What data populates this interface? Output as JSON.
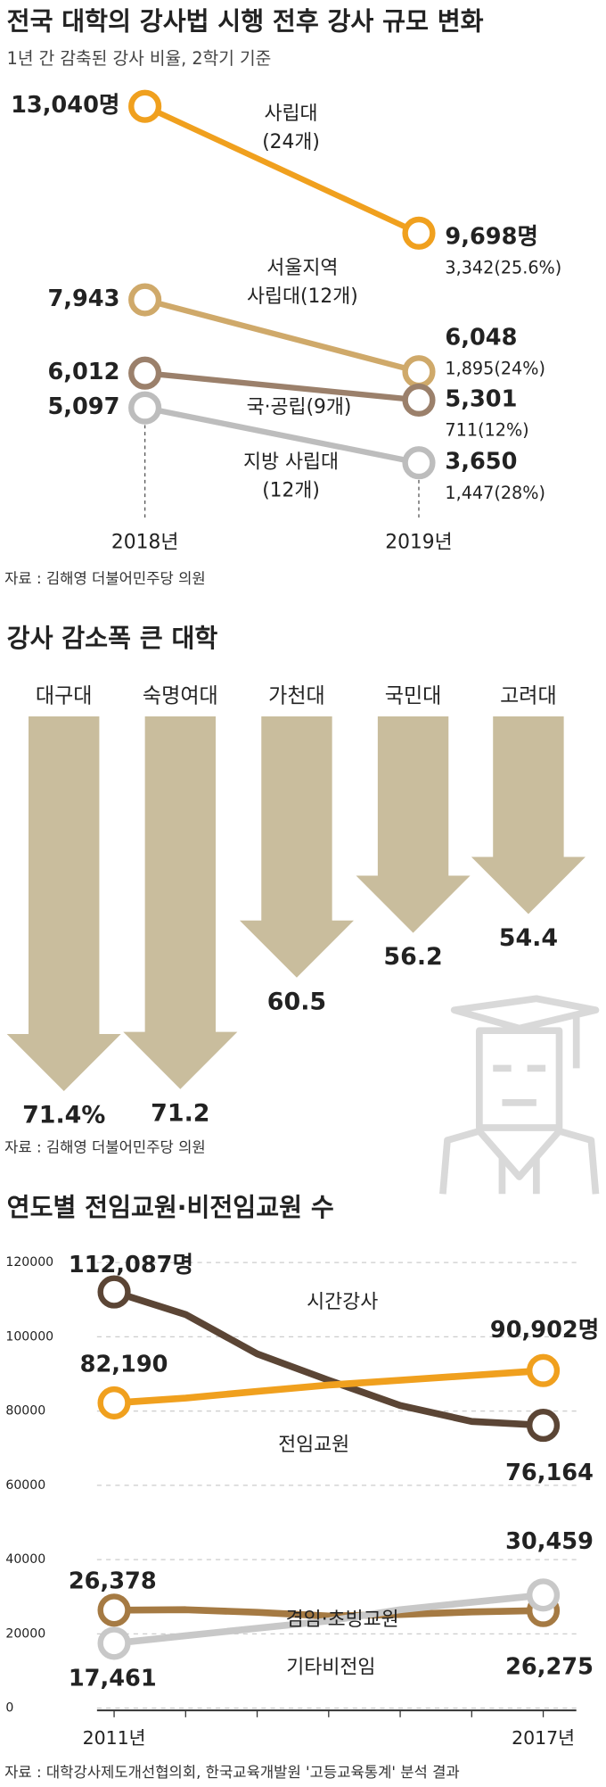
{
  "chart_data": [
    {
      "type": "slope",
      "title": "전국 대학의 강사법 시행 전후 강사 규모 변화",
      "subtitle": "1년 간 감축된 강사 비율, 2학기 기준",
      "categories": [
        "2018년",
        "2019년"
      ],
      "series": [
        {
          "name": [
            "사립대",
            "(24개)"
          ],
          "color": "#f0a01e",
          "values": [
            13040,
            9698
          ],
          "value_labels": [
            "13,040명",
            "9,698명"
          ],
          "change": "3,342(25.6%)"
        },
        {
          "name": [
            "서울지역",
            "사립대(12개)"
          ],
          "color": "#cfa96a",
          "values": [
            7943,
            6048
          ],
          "value_labels": [
            "7,943",
            "6,048"
          ],
          "change": "1,895(24%)"
        },
        {
          "name": [
            "국·공립(9개)"
          ],
          "color": "#9b806b",
          "values": [
            6012,
            5301
          ],
          "value_labels": [
            "6,012",
            "5,301"
          ],
          "change": "711(12%)"
        },
        {
          "name": [
            "지방 사립대",
            "(12개)"
          ],
          "color": "#bdbdbd",
          "values": [
            5097,
            3650
          ],
          "value_labels": [
            "5,097",
            "3,650"
          ],
          "change": "1,447(28%)"
        }
      ],
      "source": "자료 : 김해영 더불어민주당 의원"
    },
    {
      "type": "arrow",
      "title": "강사 감소폭 큰 대학",
      "categories": [
        "대구대",
        "숙명여대",
        "가천대",
        "국민대",
        "고려대"
      ],
      "values": [
        71.4,
        71.2,
        60.5,
        56.2,
        54.4
      ],
      "value_labels": [
        "71.4%",
        "71.2",
        "60.5",
        "56.2",
        "54.4"
      ],
      "color": "#c9bd9d",
      "source": "자료 : 김해영 더불어민주당 의원"
    },
    {
      "type": "line",
      "title": "연도별 전임교원·비전임교원 수",
      "categories": [
        "2011년",
        null,
        null,
        null,
        null,
        null,
        "2017년"
      ],
      "ylim": [
        0,
        120000
      ],
      "yticks": [
        0,
        20000,
        40000,
        60000,
        80000,
        100000,
        120000
      ],
      "grid": true,
      "series": [
        {
          "name": "시간강사",
          "color": "#5b4535",
          "values": [
            112087,
            106000,
            95400,
            88300,
            81500,
            77200,
            76164
          ],
          "value_labels": [
            "112,087명",
            null,
            null,
            null,
            null,
            null,
            "76,164"
          ]
        },
        {
          "name": "전임교원",
          "color": "#f0a01e",
          "values": [
            82190,
            83500,
            85300,
            87000,
            88300,
            89600,
            90902
          ],
          "value_labels": [
            "82,190",
            null,
            null,
            null,
            null,
            null,
            "90,902명"
          ]
        },
        {
          "name": "겸임·초빙교원",
          "color": "#a57a43",
          "values": [
            26378,
            26500,
            25800,
            24800,
            25200,
            25900,
            26275
          ],
          "value_labels": [
            "26,378",
            null,
            null,
            null,
            null,
            null,
            "26,275"
          ]
        },
        {
          "name": "기타비전임",
          "color": "#c8c8c8",
          "values": [
            17461,
            19500,
            21500,
            23500,
            26500,
            28500,
            30459
          ],
          "value_labels": [
            "17,461",
            null,
            null,
            null,
            null,
            null,
            "30,459"
          ]
        }
      ],
      "source": "자료 : 대학강사제도개선협의회, 한국교육개발원 '고등교육통계' 분석 결과"
    }
  ]
}
